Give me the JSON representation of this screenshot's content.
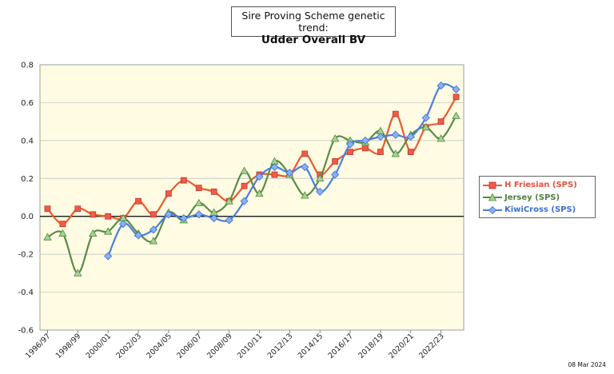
{
  "title": {
    "line1": "Sire Proving Scheme genetic trend:",
    "line2": "Udder Overall BV"
  },
  "date_stamp": "08 Mar 2024",
  "colors": {
    "plot_bg": "#FFFCE3",
    "grid": "#BDBDBD",
    "zero_line": "#000000"
  },
  "chart_data": {
    "type": "line",
    "x": [
      "1996/97",
      "1997/98",
      "1998/99",
      "1999/00",
      "2000/01",
      "2001/02",
      "2002/03",
      "2003/04",
      "2004/05",
      "2005/06",
      "2006/07",
      "2007/08",
      "2008/09",
      "2009/10",
      "2010/11",
      "2011/12",
      "2012/13",
      "2013/14",
      "2014/15",
      "2015/16",
      "2016/17",
      "2017/18",
      "2018/19",
      "2019/20",
      "2020/21",
      "2021/22",
      "2022/23",
      "2023/24"
    ],
    "tick_labels": [
      "1996/97",
      "1998/99",
      "2000/01",
      "2002/03",
      "2004/05",
      "2006/07",
      "2008/09",
      "2010/11",
      "2012/13",
      "2014/15",
      "2016/17",
      "2018/19",
      "2020/21",
      "2022/23"
    ],
    "ylim": [
      -0.6,
      0.8
    ],
    "yticks": [
      "-0.6",
      "-0.4",
      "-0.2",
      "0.0",
      "0.2",
      "0.4",
      "0.6",
      "0.8"
    ],
    "grid": true,
    "legend_position": "right",
    "series": [
      {
        "name": "H Friesian (SPS)",
        "color": "#F05A4A",
        "line_color": "#EE5A2A",
        "marker": "square",
        "values": [
          0.04,
          -0.04,
          0.04,
          0.01,
          0.0,
          -0.01,
          0.08,
          0.01,
          0.12,
          0.19,
          0.15,
          0.13,
          0.08,
          0.16,
          0.22,
          0.22,
          0.22,
          0.33,
          0.22,
          0.29,
          0.34,
          0.36,
          0.34,
          0.54,
          0.34,
          0.47,
          0.5,
          0.63
        ]
      },
      {
        "name": "Jersey (SPS)",
        "color": "#8CCB7C",
        "line_color": "#5A8A48",
        "marker": "triangle",
        "values": [
          -0.11,
          -0.09,
          -0.3,
          -0.09,
          -0.08,
          -0.01,
          -0.09,
          -0.13,
          0.02,
          -0.02,
          0.07,
          0.02,
          0.08,
          0.24,
          0.12,
          0.29,
          0.22,
          0.11,
          0.2,
          0.41,
          0.4,
          0.39,
          0.45,
          0.33,
          0.43,
          0.47,
          0.41,
          0.53
        ]
      },
      {
        "name": "KiwiCross (SPS)",
        "color": "#6A9AF0",
        "line_color": "#4A7FE0",
        "marker": "diamond",
        "values": [
          null,
          null,
          null,
          null,
          -0.21,
          -0.04,
          -0.1,
          -0.07,
          0.01,
          -0.01,
          0.01,
          -0.01,
          -0.02,
          0.08,
          0.21,
          0.26,
          0.23,
          0.26,
          0.13,
          0.22,
          0.38,
          0.4,
          0.42,
          0.43,
          0.42,
          0.52,
          0.69,
          0.67
        ]
      }
    ]
  }
}
